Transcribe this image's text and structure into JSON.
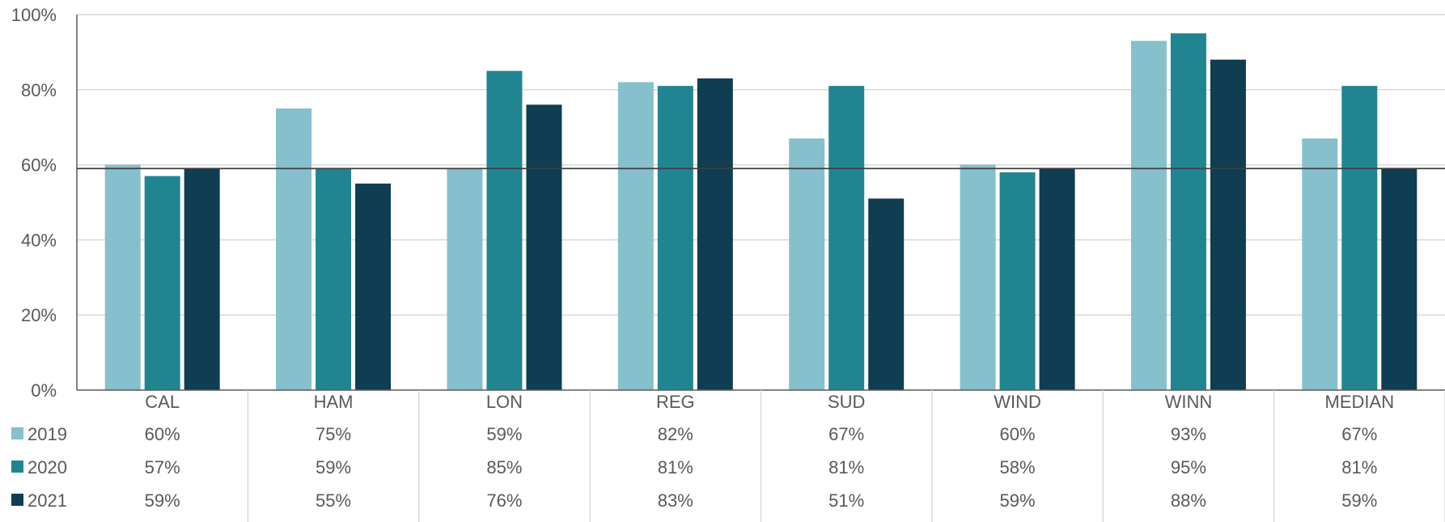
{
  "chart_data": {
    "type": "bar",
    "categories": [
      "CAL",
      "HAM",
      "LON",
      "REG",
      "SUD",
      "WIND",
      "WINN",
      "MEDIAN"
    ],
    "series": [
      {
        "name": "2019",
        "values": [
          60,
          75,
          59,
          82,
          67,
          60,
          93,
          67
        ],
        "color": "#86c0cc",
        "labels": [
          "60%",
          "75%",
          "59%",
          "82%",
          "67%",
          "60%",
          "93%",
          "67%"
        ]
      },
      {
        "name": "2020",
        "values": [
          57,
          59,
          85,
          81,
          81,
          58,
          95,
          81
        ],
        "color": "#218591",
        "labels": [
          "57%",
          "59%",
          "85%",
          "81%",
          "81%",
          "58%",
          "95%",
          "81%"
        ]
      },
      {
        "name": "2021",
        "values": [
          59,
          55,
          76,
          83,
          51,
          59,
          88,
          59
        ],
        "color": "#0f3d52",
        "labels": [
          "59%",
          "55%",
          "76%",
          "83%",
          "51%",
          "59%",
          "88%",
          "59%"
        ]
      }
    ],
    "ylim": [
      0,
      100
    ],
    "yticks": [
      0,
      20,
      40,
      60,
      80,
      100
    ],
    "ytick_labels": [
      "0%",
      "20%",
      "40%",
      "60%",
      "80%",
      "100%"
    ],
    "reference_line": 59,
    "grid": true,
    "legend": "data-table-left",
    "title": "",
    "xlabel": "",
    "ylabel": ""
  },
  "colors": {
    "gridline": "#d9d9d9",
    "axis": "#595959",
    "reference_line": "#404040",
    "text": "#595959"
  }
}
